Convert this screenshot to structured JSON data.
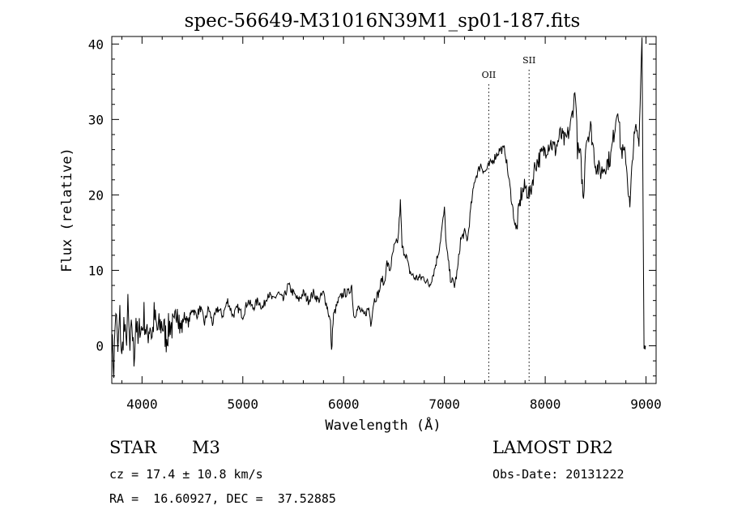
{
  "chart_data": {
    "type": "line",
    "title": "spec-56649-M31016N39M1_sp01-187.fits",
    "xlabel": "Wavelength (Å)",
    "ylabel": "Flux (relative)",
    "xlim": [
      3700,
      9100
    ],
    "ylim": [
      -5,
      41
    ],
    "x_ticks": [
      4000,
      5000,
      6000,
      7000,
      8000,
      9000
    ],
    "y_ticks": [
      0,
      10,
      20,
      30,
      40
    ],
    "grid": false,
    "series": [
      {
        "points": [
          [
            3700,
            1
          ],
          [
            3720,
            -3
          ],
          [
            3740,
            5
          ],
          [
            3760,
            -1
          ],
          [
            3780,
            4
          ],
          [
            3800,
            -2
          ],
          [
            3820,
            3
          ],
          [
            3840,
            0
          ],
          [
            3860,
            5
          ],
          [
            3880,
            -1
          ],
          [
            3900,
            3
          ],
          [
            3920,
            -2
          ],
          [
            3940,
            4
          ],
          [
            3960,
            0
          ],
          [
            3980,
            3
          ],
          [
            4000,
            2
          ],
          [
            4020,
            4
          ],
          [
            4050,
            1
          ],
          [
            4080,
            3
          ],
          [
            4100,
            1
          ],
          [
            4120,
            4
          ],
          [
            4150,
            2
          ],
          [
            4200,
            3
          ],
          [
            4240,
            1
          ],
          [
            4280,
            3
          ],
          [
            4320,
            2
          ],
          [
            4350,
            6
          ],
          [
            4380,
            2
          ],
          [
            4420,
            4
          ],
          [
            4460,
            3
          ],
          [
            4500,
            5
          ],
          [
            4540,
            4
          ],
          [
            4580,
            5
          ],
          [
            4620,
            3
          ],
          [
            4660,
            5
          ],
          [
            4700,
            3
          ],
          [
            4750,
            5
          ],
          [
            4800,
            4
          ],
          [
            4850,
            6
          ],
          [
            4900,
            4
          ],
          [
            4950,
            5
          ],
          [
            5000,
            4
          ],
          [
            5050,
            6
          ],
          [
            5100,
            5
          ],
          [
            5150,
            6
          ],
          [
            5200,
            5
          ],
          [
            5250,
            7
          ],
          [
            5300,
            6
          ],
          [
            5350,
            7
          ],
          [
            5400,
            6
          ],
          [
            5450,
            8
          ],
          [
            5500,
            7
          ],
          [
            5550,
            6
          ],
          [
            5600,
            7
          ],
          [
            5650,
            6
          ],
          [
            5700,
            7
          ],
          [
            5750,
            6
          ],
          [
            5800,
            7
          ],
          [
            5840,
            5
          ],
          [
            5870,
            3
          ],
          [
            5880,
            -1
          ],
          [
            5890,
            2
          ],
          [
            5900,
            4
          ],
          [
            5950,
            6
          ],
          [
            6000,
            7
          ],
          [
            6050,
            7
          ],
          [
            6080,
            8
          ],
          [
            6100,
            4
          ],
          [
            6150,
            5
          ],
          [
            6200,
            4
          ],
          [
            6250,
            5
          ],
          [
            6270,
            3
          ],
          [
            6300,
            6
          ],
          [
            6350,
            7
          ],
          [
            6380,
            9
          ],
          [
            6400,
            8
          ],
          [
            6430,
            11
          ],
          [
            6460,
            10
          ],
          [
            6500,
            13
          ],
          [
            6540,
            14
          ],
          [
            6563,
            19
          ],
          [
            6580,
            13
          ],
          [
            6620,
            12
          ],
          [
            6650,
            10
          ],
          [
            6700,
            9
          ],
          [
            6750,
            9
          ],
          [
            6800,
            9
          ],
          [
            6850,
            8
          ],
          [
            6900,
            10
          ],
          [
            6950,
            13
          ],
          [
            6980,
            16
          ],
          [
            7000,
            18
          ],
          [
            7020,
            13
          ],
          [
            7060,
            9
          ],
          [
            7100,
            8
          ],
          [
            7130,
            10
          ],
          [
            7160,
            14
          ],
          [
            7200,
            15
          ],
          [
            7230,
            14
          ],
          [
            7260,
            18
          ],
          [
            7300,
            22
          ],
          [
            7330,
            23
          ],
          [
            7360,
            24
          ],
          [
            7400,
            23
          ],
          [
            7450,
            24
          ],
          [
            7500,
            25
          ],
          [
            7550,
            26
          ],
          [
            7600,
            26
          ],
          [
            7650,
            21
          ],
          [
            7680,
            18
          ],
          [
            7710,
            15
          ],
          [
            7730,
            17
          ],
          [
            7760,
            20
          ],
          [
            7800,
            21
          ],
          [
            7850,
            20
          ],
          [
            7900,
            24
          ],
          [
            7950,
            25
          ],
          [
            8000,
            26
          ],
          [
            8050,
            27
          ],
          [
            8100,
            26
          ],
          [
            8150,
            28
          ],
          [
            8200,
            27
          ],
          [
            8250,
            29
          ],
          [
            8300,
            34
          ],
          [
            8320,
            26
          ],
          [
            8350,
            25
          ],
          [
            8380,
            19
          ],
          [
            8400,
            27
          ],
          [
            8450,
            29
          ],
          [
            8500,
            24
          ],
          [
            8550,
            23
          ],
          [
            8600,
            24
          ],
          [
            8650,
            25
          ],
          [
            8700,
            30
          ],
          [
            8720,
            32
          ],
          [
            8750,
            26
          ],
          [
            8800,
            25
          ],
          [
            8840,
            18
          ],
          [
            8870,
            26
          ],
          [
            8900,
            29
          ],
          [
            8930,
            27
          ],
          [
            8960,
            41
          ],
          [
            8980,
            0
          ],
          [
            8995,
            0
          ]
        ]
      }
    ],
    "annotations": [
      {
        "label": "OII",
        "x": 7440
      },
      {
        "label": "SII",
        "x": 7840
      }
    ]
  },
  "info": {
    "object_type": "STAR",
    "subclass": "M3",
    "cz": "cz = 17.4 ± 10.8 km/s",
    "coords": "RA =  16.60927, DEC =  37.52885",
    "survey": "LAMOST DR2",
    "obs_date": "Obs-Date: 20131222"
  }
}
